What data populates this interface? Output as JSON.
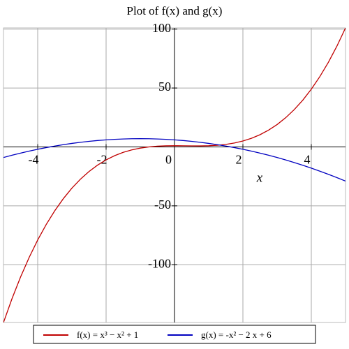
{
  "chart_data": {
    "type": "line",
    "title": "Plot of f(x) and g(x)",
    "x_label": "x",
    "x": [
      -5,
      -4.75,
      -4.5,
      -4.25,
      -4,
      -3.75,
      -3.5,
      -3.25,
      -3,
      -2.75,
      -2.5,
      -2.25,
      -2,
      -1.75,
      -1.5,
      -1.25,
      -1,
      -0.75,
      -0.5,
      -0.25,
      0,
      0.25,
      0.5,
      0.75,
      1,
      1.25,
      1.5,
      1.75,
      2,
      2.25,
      2.5,
      2.75,
      3,
      3.25,
      3.5,
      3.75,
      4,
      4.25,
      4.5,
      4.75,
      5
    ],
    "series": [
      {
        "name": "f(x) = x³ − x² + 1",
        "color": "#c00000",
        "values": [
          -149,
          -128.734375,
          -110.375,
          -93.828125,
          -79,
          -65.796875,
          -54.125,
          -43.890625,
          -35,
          -27.359375,
          -20.875,
          -15.453125,
          -11,
          -7.421875,
          -4.625,
          -2.515625,
          -1,
          0.015625,
          0.625,
          0.921875,
          1,
          0.953125,
          0.875,
          0.859375,
          1,
          1.390625,
          2.125,
          3.296875,
          5,
          7.328125,
          10.375,
          14.234375,
          19,
          24.765625,
          31.625,
          39.671875,
          49,
          59.703125,
          71.875,
          85.609375,
          101
        ]
      },
      {
        "name": "g(x) = -x² − 2 x + 6",
        "color": "#0000c0",
        "values": [
          -9,
          -7.0625,
          -5.25,
          -3.5625,
          -2,
          -0.5625,
          0.75,
          1.9375,
          3,
          3.9375,
          4.75,
          5.4375,
          6,
          6.4375,
          6.75,
          6.9375,
          7,
          6.9375,
          6.75,
          6.4375,
          6,
          5.4375,
          4.75,
          3.9375,
          3,
          1.9375,
          0.75,
          -0.5625,
          -2,
          -3.5625,
          -5.25,
          -7.0625,
          -9,
          -11.0625,
          -13.25,
          -15.5625,
          -18,
          -20.5625,
          -23.25,
          -26.0625,
          -29
        ]
      }
    ],
    "xlim": [
      -5,
      5
    ],
    "ylim": [
      -149,
      101
    ],
    "xticks": [
      -4,
      -2,
      0,
      2,
      4
    ],
    "yticks": [
      -100,
      -50,
      50,
      100
    ],
    "grid": true
  }
}
